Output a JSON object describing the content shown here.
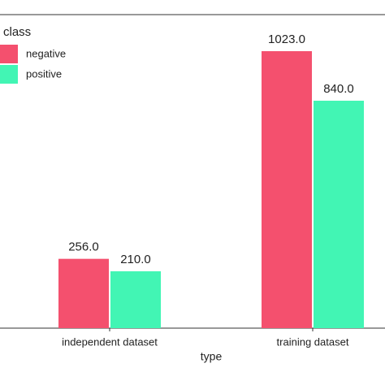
{
  "chart_data": {
    "type": "bar",
    "categories": [
      "independent dataset",
      "training dataset"
    ],
    "x_label": "type",
    "legend_title": "class",
    "legend_position": "top-left",
    "series": [
      {
        "name": "negative",
        "color": "#f4506e",
        "values": [
          256,
          1023
        ],
        "value_labels": [
          "256.0",
          "1023.0"
        ]
      },
      {
        "name": "positive",
        "color": "#42f5b4",
        "values": [
          210,
          840
        ],
        "value_labels": [
          "210.0",
          "840.0"
        ]
      }
    ]
  }
}
